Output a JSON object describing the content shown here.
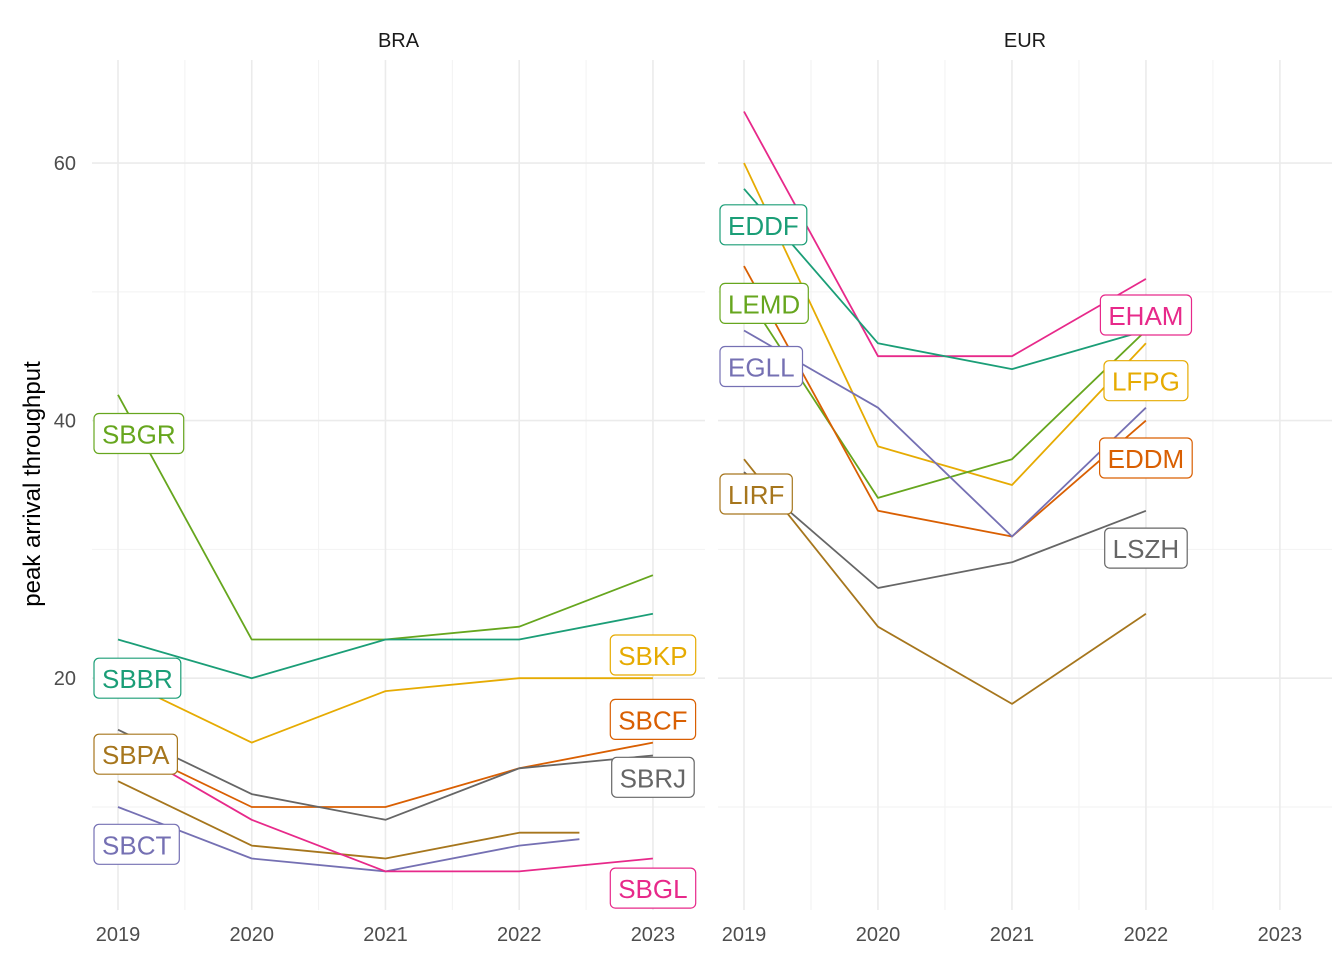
{
  "chart_data": {
    "type": "line",
    "ylabel": "peak arrival throughput",
    "xlabel": "",
    "ylim": [
      2,
      68
    ],
    "y_ticks": [
      20,
      40,
      60
    ],
    "grid": true,
    "panels": [
      {
        "title": "BRA",
        "x_ticks": [
          "2019",
          "2020",
          "2021",
          "2022",
          "2023"
        ],
        "xlim": [
          2019,
          2023.15
        ],
        "series": [
          {
            "name": "SBGR",
            "color": "#66a61e",
            "x": [
              2019,
              2020,
              2021,
              2022,
              2023
            ],
            "y": [
              42,
              23,
              23,
              24,
              28
            ],
            "label_side": "start",
            "label_y": 39
          },
          {
            "name": "SBBR",
            "color": "#1b9e77",
            "x": [
              2019,
              2020,
              2021,
              2022,
              2023
            ],
            "y": [
              23,
              20,
              23,
              23,
              25
            ],
            "label_side": "start",
            "label_y": 20
          },
          {
            "name": "SBKP",
            "color": "#e6ab02",
            "x": [
              2019,
              2020,
              2021,
              2022,
              2023
            ],
            "y": [
              20,
              15,
              19,
              20,
              20
            ],
            "label_side": "end",
            "label_y": 21.8
          },
          {
            "name": "SBCF",
            "color": "#d95f02",
            "x": [
              2019,
              2020,
              2021,
              2022,
              2023
            ],
            "y": [
              15,
              10,
              10,
              13,
              15
            ],
            "label_side": "end",
            "label_y": 16.8
          },
          {
            "name": "SBRJ",
            "color": "#666666",
            "x": [
              2019,
              2020,
              2021,
              2022,
              2023
            ],
            "y": [
              16,
              11,
              9,
              13,
              14
            ],
            "label_side": "end",
            "label_y": 12.3
          },
          {
            "name": "SBPA",
            "color": "#a6761d",
            "x": [
              2019,
              2020,
              2021,
              2022,
              2022.45
            ],
            "y": [
              12,
              7,
              6,
              8,
              8
            ],
            "label_side": "start",
            "label_y": 14.1
          },
          {
            "name": "SBCT",
            "color": "#7570b3",
            "x": [
              2019,
              2020,
              2021,
              2022,
              2022.45
            ],
            "y": [
              10,
              6,
              5,
              7,
              7.5
            ],
            "label_side": "start",
            "label_y": 7.1
          },
          {
            "name": "SBGL",
            "color": "#e7298a",
            "x": [
              2019,
              2020,
              2021,
              2022,
              2023
            ],
            "y": [
              15,
              9,
              5,
              5,
              6
            ],
            "label_side": "end",
            "label_y": 3.7
          }
        ]
      },
      {
        "title": "EUR",
        "x_ticks": [
          "2019",
          "2020",
          "2021",
          "2022",
          "2023"
        ],
        "xlim": [
          2019,
          2023.15
        ],
        "series": [
          {
            "name": "EHAM",
            "color": "#e7298a",
            "x": [
              2019,
              2020,
              2021,
              2022
            ],
            "y": [
              64,
              45,
              45,
              51
            ],
            "label_side": "end",
            "label_y": 48.2
          },
          {
            "name": "EDDF",
            "color": "#1b9e77",
            "x": [
              2019,
              2020,
              2021,
              2022
            ],
            "y": [
              58,
              46,
              44,
              47
            ],
            "label_side": "start",
            "label_y": 55.2
          },
          {
            "name": "LFPG",
            "color": "#e6ab02",
            "x": [
              2019,
              2020,
              2021,
              2022
            ],
            "y": [
              60,
              38,
              35,
              46
            ],
            "label_side": "end",
            "label_y": 43.1
          },
          {
            "name": "LEMD",
            "color": "#66a61e",
            "x": [
              2019,
              2020,
              2021,
              2022
            ],
            "y": [
              50,
              34,
              37,
              47
            ],
            "label_side": "start",
            "label_y": 49.1
          },
          {
            "name": "EDDM",
            "color": "#d95f02",
            "x": [
              2019,
              2020,
              2021,
              2022
            ],
            "y": [
              52,
              33,
              31,
              40
            ],
            "label_side": "end",
            "label_y": 37.1
          },
          {
            "name": "EGLL",
            "color": "#7570b3",
            "x": [
              2019,
              2020,
              2021,
              2022
            ],
            "y": [
              47,
              41,
              31,
              41
            ],
            "label_side": "start",
            "label_y": 44.2
          },
          {
            "name": "LSZH",
            "color": "#666666",
            "x": [
              2019,
              2020,
              2021,
              2022
            ],
            "y": [
              36,
              27,
              29,
              33
            ],
            "label_side": "end",
            "label_y": 30.1
          },
          {
            "name": "LIRF",
            "color": "#a6761d",
            "x": [
              2019,
              2020,
              2021,
              2022
            ],
            "y": [
              37,
              24,
              18,
              25
            ],
            "label_side": "start",
            "label_y": 34.3
          }
        ]
      }
    ]
  }
}
